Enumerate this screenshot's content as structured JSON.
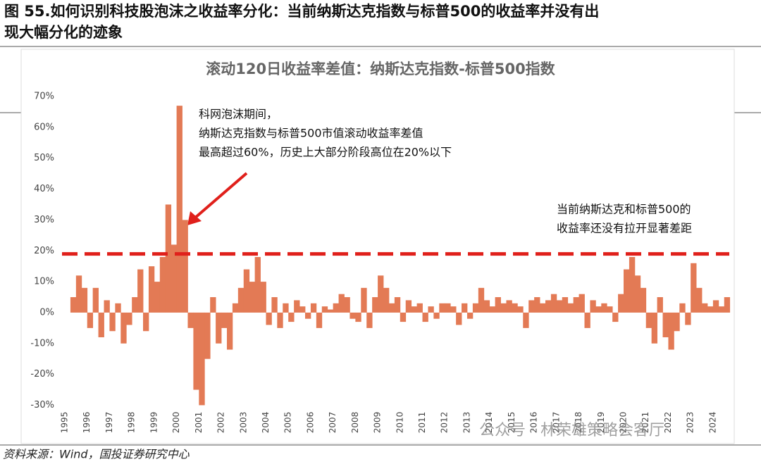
{
  "header": {
    "title_lines": [
      "图 55.如何识别科技股泡沫之收益率分化：当前纳斯达克指数与标普500的收益率并没有出",
      "现大幅分化的迹象"
    ]
  },
  "chart_data": {
    "type": "bar",
    "title": "滚动120日收益率差值：纳斯达克指数-标普500指数",
    "color": "#e37a55",
    "categories": [
      "1995",
      null,
      null,
      null,
      "1996",
      null,
      null,
      null,
      "1997",
      null,
      null,
      null,
      "1998",
      null,
      null,
      null,
      "1999",
      null,
      null,
      null,
      "2000",
      null,
      null,
      null,
      "2001",
      null,
      null,
      null,
      "2002",
      null,
      null,
      null,
      "2003",
      null,
      null,
      null,
      "2004",
      null,
      null,
      null,
      "2005",
      null,
      null,
      null,
      "2006",
      null,
      null,
      null,
      "2007",
      null,
      null,
      null,
      "2008",
      null,
      null,
      null,
      "2009",
      null,
      null,
      null,
      "2010",
      null,
      null,
      null,
      "2011",
      null,
      null,
      null,
      "2012",
      null,
      null,
      null,
      "2013",
      null,
      null,
      null,
      "2014",
      null,
      null,
      null,
      "2015",
      null,
      null,
      null,
      "2016",
      null,
      null,
      null,
      "2017",
      null,
      null,
      null,
      "2018",
      null,
      null,
      null,
      "2019",
      null,
      null,
      null,
      "2020",
      null,
      null,
      null,
      "2021",
      null,
      null,
      null,
      "2022",
      null,
      null,
      null,
      "2023",
      null,
      null,
      null,
      "2024",
      null,
      null
    ],
    "values": [
      0,
      5,
      12,
      8,
      -5,
      8,
      -8,
      4,
      -6,
      3,
      -10,
      -4,
      5,
      14,
      -6,
      15,
      10,
      18,
      35,
      22,
      67,
      30,
      -5,
      -25,
      -30,
      -15,
      5,
      -10,
      -5,
      -12,
      3,
      8,
      14,
      10,
      18,
      10,
      -4,
      5,
      -5,
      3,
      -3,
      4,
      2,
      -2,
      3,
      -5,
      2,
      1,
      3,
      6,
      5,
      -2,
      -3,
      8,
      -5,
      5,
      12,
      8,
      3,
      5,
      -3,
      4,
      2,
      3,
      -3,
      2,
      -2,
      3,
      3,
      2,
      -4,
      3,
      -2,
      3,
      8,
      4,
      2,
      5,
      3,
      4,
      3,
      2,
      -5,
      4,
      5,
      3,
      4,
      6,
      4,
      5,
      3,
      5,
      6,
      -5,
      4,
      2,
      3,
      2,
      -3,
      6,
      14,
      18,
      12,
      8,
      -5,
      -10,
      5,
      -8,
      -12,
      -6,
      3,
      -4,
      16,
      8,
      3,
      2,
      4,
      2,
      5
    ],
    "ylim": [
      -30,
      70
    ],
    "yticks": [
      {
        "value": -30,
        "label": "-30%"
      },
      {
        "value": -20,
        "label": "-20%"
      },
      {
        "value": -10,
        "label": "-10%"
      },
      {
        "value": 0,
        "label": "0%"
      },
      {
        "value": 10,
        "label": "10%"
      },
      {
        "value": 20,
        "label": "20%"
      },
      {
        "value": 30,
        "label": "30%"
      },
      {
        "value": 40,
        "label": "40%"
      },
      {
        "value": 50,
        "label": "50%"
      },
      {
        "value": 60,
        "label": "60%"
      },
      {
        "value": 70,
        "label": "70%"
      }
    ],
    "reference_line": {
      "value": 19,
      "color": "#e0201b"
    },
    "annotations": [
      {
        "lines": [
          "科网泡沫期间，",
          "纳斯达克指数与标普500市值滚动收益率差值",
          "最高超过60%，历史上大部分阶段高位在20%以下"
        ]
      },
      {
        "lines": [
          "当前纳斯达克和标普500的",
          "收益率还没有拉开显著差距"
        ]
      }
    ]
  },
  "watermark": "公众号 · 林荣雄策略会客厅",
  "source": "资料来源：Wind，国投证券研究中心"
}
